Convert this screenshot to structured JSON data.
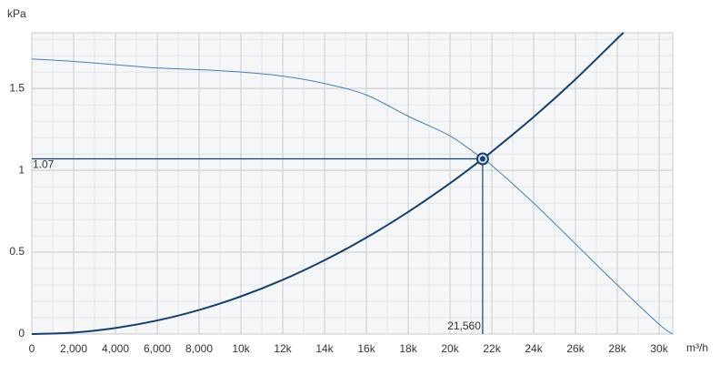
{
  "chart_data": {
    "type": "line",
    "y_label": "kPa",
    "x_label": "m³/h",
    "xlim": [
      0,
      30650
    ],
    "ylim": [
      0,
      1.84
    ],
    "xticks": [
      0,
      {
        "value": 2000,
        "label": "2,000"
      },
      {
        "value": 4000,
        "label": "4,000"
      },
      {
        "value": 6000,
        "label": "6,000"
      },
      {
        "value": 8000,
        "label": "8,000"
      },
      {
        "value": 10000,
        "label": "10k"
      },
      {
        "value": 12000,
        "label": "12k"
      },
      {
        "value": 14000,
        "label": "14k"
      },
      {
        "value": 16000,
        "label": "16k"
      },
      {
        "value": 18000,
        "label": "18k"
      },
      {
        "value": 20000,
        "label": "20k"
      },
      {
        "value": 22000,
        "label": "22k"
      },
      {
        "value": 24000,
        "label": "24k"
      },
      {
        "value": 26000,
        "label": "26k"
      },
      {
        "value": 28000,
        "label": "28k"
      },
      {
        "value": 30000,
        "label": "30k"
      }
    ],
    "yticks": [
      0,
      0.5,
      1,
      1.5
    ],
    "grid": true,
    "series": [
      {
        "color": "#4a7db0",
        "x": [
          0,
          2000,
          4000,
          6000,
          8000,
          10000,
          12000,
          14000,
          16000,
          18000,
          20000,
          21560,
          22000,
          24000,
          26000,
          28000,
          30000,
          30650
        ],
        "values": [
          1.68,
          1.665,
          1.645,
          1.625,
          1.615,
          1.6,
          1.575,
          1.53,
          1.46,
          1.33,
          1.21,
          1.07,
          1.03,
          0.8,
          0.55,
          0.3,
          0.06,
          0
        ]
      },
      {
        "color": "#16406b",
        "x": [
          0,
          2000,
          4000,
          6000,
          8000,
          10000,
          12000,
          14000,
          16000,
          18000,
          20000,
          21560,
          22000,
          24000,
          26000,
          28000,
          28300
        ],
        "values": [
          0,
          0.0092,
          0.037,
          0.083,
          0.147,
          0.23,
          0.331,
          0.451,
          0.589,
          0.746,
          0.921,
          1.07,
          1.114,
          1.326,
          1.556,
          1.805,
          1.84
        ]
      }
    ],
    "operating_point": {
      "x": {
        "value": 21560,
        "label": "21,560"
      },
      "y": 1.07,
      "color": "#16406b"
    }
  }
}
